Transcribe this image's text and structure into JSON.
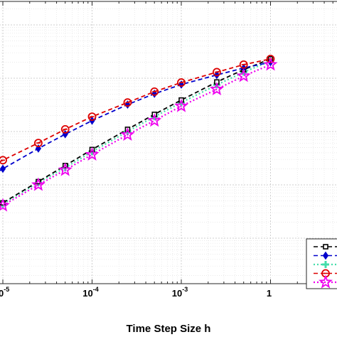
{
  "chart_data": {
    "type": "line",
    "title": "",
    "xlabel": "Time Step Size h",
    "ylabel": "",
    "xscale": "log",
    "yscale": "log",
    "xlim": [
      1e-06,
      0.01
    ],
    "ylim": [
      1e-10,
      0.0001
    ],
    "grid": true,
    "minor_grid": true,
    "legend_position": "bottom-right",
    "x_tick_labels": [
      {
        "value": 1e-05,
        "base": "10",
        "exp": "-5"
      },
      {
        "value": 0.0001,
        "base": "10",
        "exp": "-4"
      },
      {
        "value": 0.001,
        "base": "10",
        "exp": "-3"
      },
      {
        "value": 0.01,
        "base": "1",
        "exp": ""
      }
    ],
    "series": [
      {
        "color": "#000000",
        "line": "dashed",
        "marker": "square",
        "x": [
          2.5e-06,
          5e-06,
          1e-05,
          2.5e-05,
          5e-05,
          0.0001,
          0.00025,
          0.0005,
          0.001,
          0.0025,
          0.005,
          0.01
        ],
        "y": [
          1.1e-09,
          2.3e-09,
          4.6e-09,
          1.15e-08,
          2.3e-08,
          4.6e-08,
          1.1e-07,
          2.1e-07,
          3.9e-07,
          8.5e-07,
          1.45e-06,
          2.3e-06
        ]
      },
      {
        "color": "#0000cc",
        "line": "dashed",
        "marker": "diamond",
        "x": [
          2.5e-06,
          5e-06,
          1e-05,
          2.5e-05,
          5e-05,
          0.0001,
          0.00025,
          0.0005,
          0.001,
          0.0025,
          0.005,
          0.01
        ],
        "y": [
          5.2e-09,
          1e-08,
          2e-08,
          4.8e-08,
          8.9e-08,
          1.6e-07,
          3.2e-07,
          5.1e-07,
          7.6e-07,
          1.15e-06,
          1.55e-06,
          2e-06
        ]
      },
      {
        "color": "#44ddaa",
        "line": "dotted",
        "marker": "plus",
        "x": [
          2.5e-06,
          5e-06,
          1e-05,
          2.5e-05,
          5e-05,
          0.0001,
          0.00025,
          0.0005,
          0.001,
          0.0025,
          0.005,
          0.01
        ],
        "y": [
          1.05e-09,
          2.2e-09,
          4.4e-09,
          1.1e-08,
          2.1e-08,
          4.2e-08,
          1e-07,
          1.9e-07,
          3.5e-07,
          7.5e-07,
          1.3e-06,
          2.1e-06
        ]
      },
      {
        "color": "#dd0000",
        "line": "dashed",
        "marker": "circle",
        "x": [
          2.5e-06,
          5e-06,
          1e-05,
          2.5e-05,
          5e-05,
          0.0001,
          0.00025,
          0.0005,
          0.001,
          0.0025,
          0.005,
          0.01
        ],
        "y": [
          8.3e-09,
          1.6e-08,
          2.9e-08,
          6.1e-08,
          1.1e-07,
          1.9e-07,
          3.5e-07,
          5.6e-07,
          8.3e-07,
          1.3e-06,
          1.8e-06,
          2.3e-06
        ]
      },
      {
        "color": "#ee00ee",
        "line": "dotted",
        "marker": "star",
        "x": [
          2.5e-06,
          5e-06,
          1e-05,
          2.5e-05,
          5e-05,
          0.0001,
          0.00025,
          0.0005,
          0.001,
          0.0025,
          0.005,
          0.01
        ],
        "y": [
          9.5e-10,
          2e-09,
          4.1e-09,
          1e-08,
          1.9e-08,
          3.7e-08,
          8.7e-08,
          1.6e-07,
          3e-07,
          6.2e-07,
          1.1e-06,
          1.8e-06
        ]
      }
    ]
  }
}
